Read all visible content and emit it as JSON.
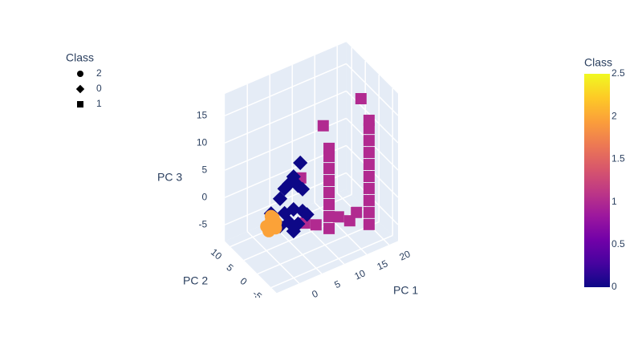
{
  "chart_data": {
    "type": "scatter3d",
    "xlabel": "PC 1",
    "ylabel": "PC 2",
    "zlabel": "PC 3",
    "xlim": [
      -5,
      22
    ],
    "ylim": [
      -7,
      12
    ],
    "zlim": [
      -8,
      19
    ],
    "xticks": [
      0,
      5,
      10,
      15,
      20
    ],
    "yticks": [
      -5,
      0,
      5,
      10
    ],
    "zticks": [
      -5,
      0,
      5,
      10,
      15
    ],
    "legend_title": "Class",
    "series": [
      {
        "name": "2",
        "symbol": "circle",
        "color": "#fba238",
        "x": [
          -3,
          -2,
          -2,
          -1,
          -2.5,
          -1.5,
          -2,
          -1
        ],
        "y": [
          0,
          0,
          0,
          0,
          0,
          0,
          0,
          0
        ],
        "z": [
          0,
          0.5,
          -0.5,
          0,
          -1,
          1,
          1.5,
          -1
        ]
      },
      {
        "name": "0",
        "symbol": "diamond",
        "color": "#0d0887",
        "x": [
          -2,
          0,
          1,
          2,
          3,
          4,
          4.5,
          5,
          1,
          3,
          5,
          6,
          2,
          4,
          0,
          3
        ],
        "y": [
          0,
          0,
          0,
          0,
          0,
          0,
          0,
          0,
          0,
          0,
          0,
          0,
          0,
          0,
          0,
          0
        ],
        "z": [
          2,
          4,
          5.5,
          6,
          7,
          5,
          9,
          4,
          1,
          1,
          0,
          -1,
          -1,
          -2,
          -1,
          -3
        ]
      },
      {
        "name": "1",
        "symbol": "square",
        "color": "#b12a90",
        "x": [
          10.9,
          10.9,
          10.9,
          10.9,
          10.9,
          10.9,
          10.9,
          10.9,
          19.8,
          19.8,
          19.8,
          19.8,
          19.8,
          19.8,
          19.8,
          19.8,
          19.8,
          19.8,
          18,
          9.6,
          4.6,
          5.5,
          8,
          13,
          15.5,
          17
        ],
        "y": [
          0,
          0,
          0,
          0,
          0,
          0,
          0,
          0,
          0,
          0,
          0,
          0,
          0,
          0,
          0,
          0,
          0,
          0,
          0,
          0,
          0,
          0,
          0,
          0,
          0,
          0
        ],
        "z": [
          -5.3,
          -3.1,
          -0.9,
          1.3,
          3.5,
          5.7,
          7.9,
          9.4,
          -7.7,
          -5.5,
          -3.3,
          -1.1,
          1.1,
          3.3,
          5.5,
          7.7,
          9.9,
          11.4,
          16,
          14,
          6.2,
          -2.4,
          -3.6,
          -3.9,
          -5.5,
          -4.5
        ]
      }
    ],
    "colorbar": {
      "title": "Class",
      "clim": [
        0,
        2.5
      ],
      "ticks": [
        0,
        0.5,
        1,
        1.5,
        2,
        2.5
      ],
      "colorscale": [
        "#0d0887",
        "#46039f",
        "#7201a8",
        "#9c179e",
        "#bd3786",
        "#d8576b",
        "#ed7953",
        "#fb9f3a",
        "#fdca26",
        "#f0f921"
      ]
    }
  }
}
